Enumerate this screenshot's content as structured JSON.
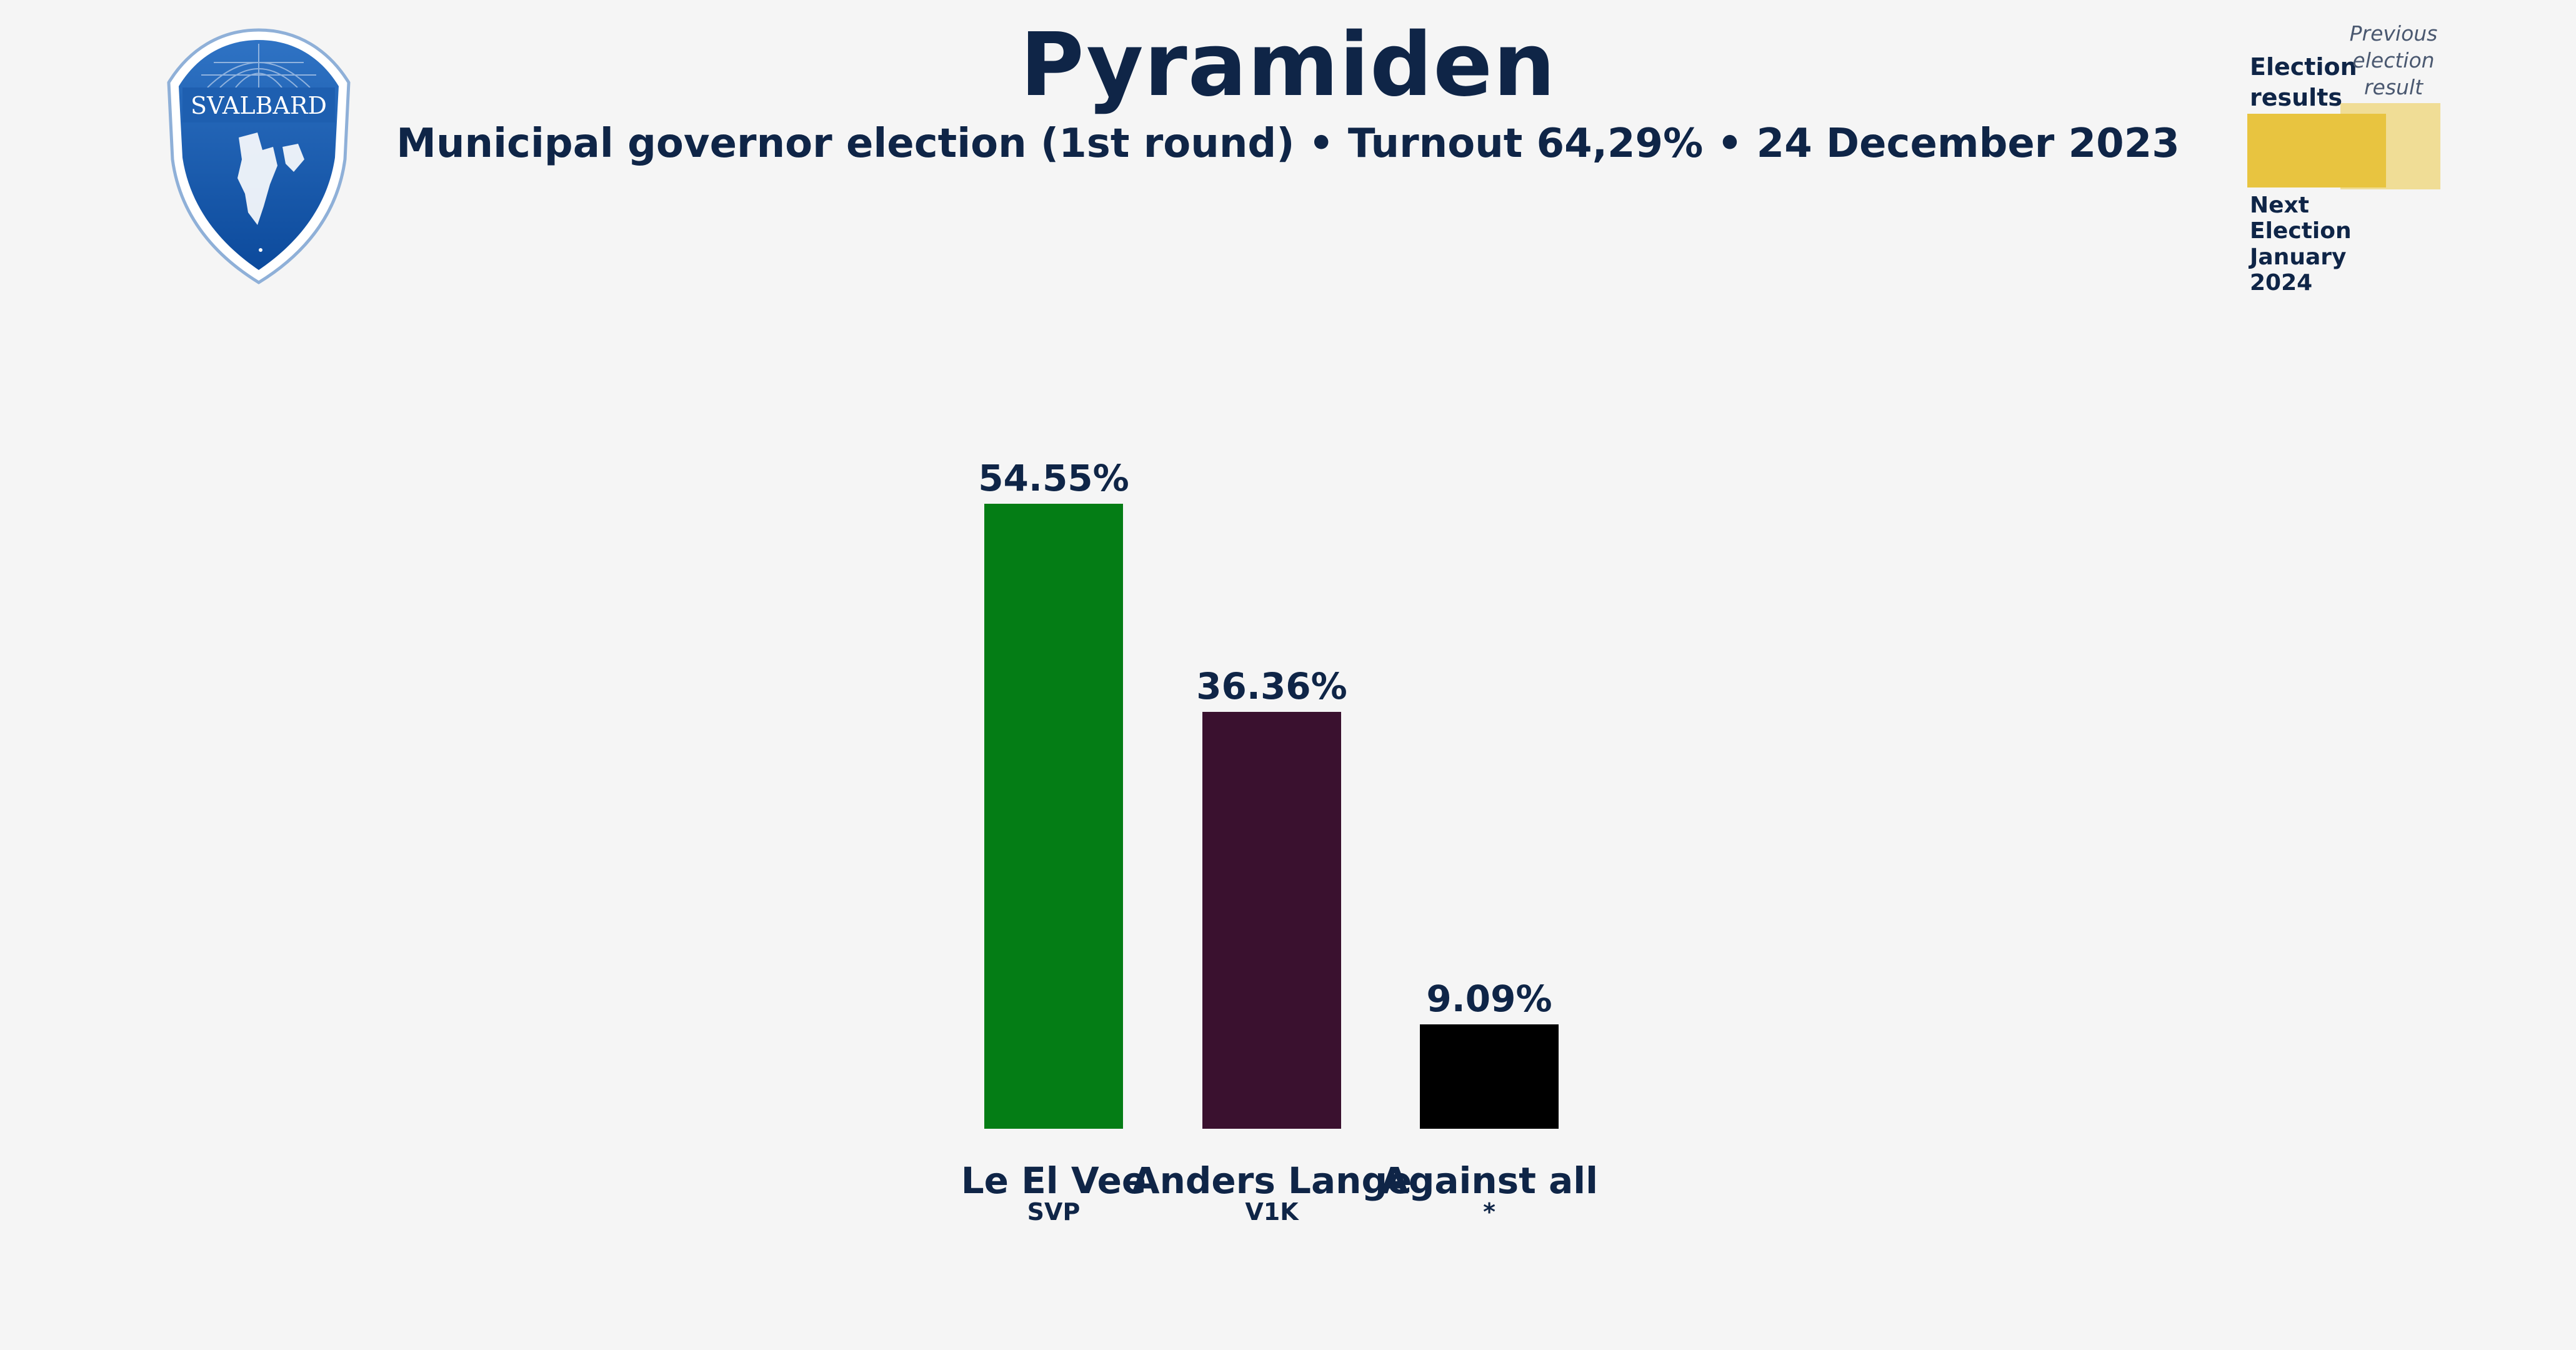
{
  "header": {
    "title": "Pyramiden",
    "subtitle": "Municipal governor election (1st round) • Turnout 64,29% • 24 December 2023"
  },
  "emblem": {
    "text": "SVALBARD",
    "icon": "svalbard-shield-icon"
  },
  "legend": {
    "results_label": "Election results",
    "previous_label": "Previous election result",
    "next_election_label": "Next Election January 2024",
    "current_color": "#e8c440",
    "previous_color": "#f0dd96"
  },
  "chart_data": {
    "type": "bar",
    "title": "Pyramiden",
    "categories": [
      "Le El Vee",
      "Anders Lange",
      "Against all"
    ],
    "sublabels": [
      "SVP",
      "V1K",
      "*"
    ],
    "values": [
      54.55,
      36.36,
      9.09
    ],
    "value_labels": [
      "54.55%",
      "36.36%",
      "9.09%"
    ],
    "colors": [
      "#047d15",
      "#3a112f",
      "#000000"
    ],
    "ylim": [
      0,
      54.55
    ],
    "grid": false
  }
}
